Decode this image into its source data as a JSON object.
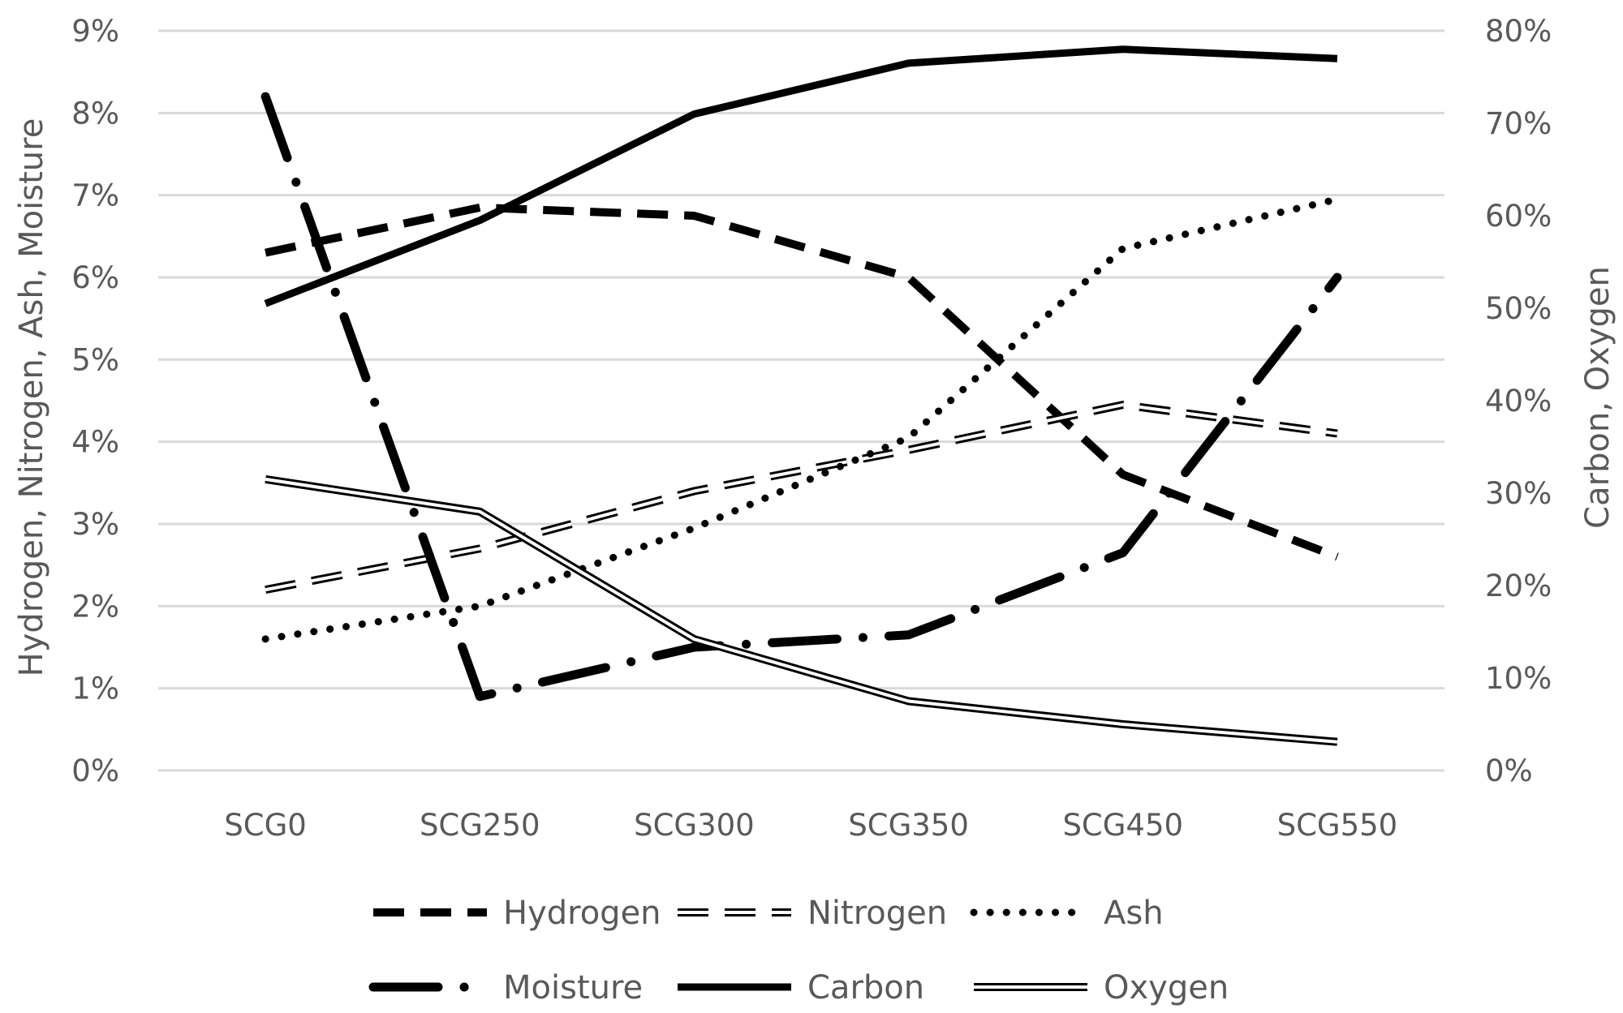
{
  "chart_data": {
    "type": "line",
    "categories": [
      "SCG0",
      "SCG250",
      "SCG300",
      "SCG350",
      "SCG450",
      "SCG550"
    ],
    "y_left": {
      "label": "Hydrogen, Nitrogen, Ash, Moisture",
      "range": [
        0,
        9
      ],
      "ticks": [
        "0%",
        "1%",
        "2%",
        "3%",
        "4%",
        "5%",
        "6%",
        "7%",
        "8%",
        "9%"
      ]
    },
    "y_right": {
      "label": "Carbon, Oxygen",
      "range": [
        0,
        80
      ],
      "ticks": [
        "0%",
        "10%",
        "20%",
        "30%",
        "40%",
        "50%",
        "60%",
        "70%",
        "80%"
      ]
    },
    "grid": true,
    "legend_position": "bottom",
    "series": [
      {
        "name": "Hydrogen",
        "axis": "left",
        "style": "dash",
        "values": [
          6.3,
          6.85,
          6.75,
          6.0,
          3.6,
          2.6
        ]
      },
      {
        "name": "Nitrogen",
        "axis": "left",
        "style": "hollow-dash",
        "values": [
          2.2,
          2.7,
          3.4,
          3.9,
          4.45,
          4.1
        ]
      },
      {
        "name": "Ash",
        "axis": "left",
        "style": "dot",
        "values": [
          1.6,
          2.0,
          2.95,
          4.05,
          6.35,
          6.95
        ]
      },
      {
        "name": "Moisture",
        "axis": "left",
        "style": "long-dash-dot",
        "values": [
          8.2,
          0.9,
          1.5,
          1.65,
          2.65,
          6.0
        ]
      },
      {
        "name": "Carbon",
        "axis": "right",
        "style": "solid",
        "values": [
          50.5,
          59.5,
          71.0,
          76.5,
          78.0,
          77.0
        ]
      },
      {
        "name": "Oxygen",
        "axis": "right",
        "style": "double",
        "values": [
          31.5,
          28.0,
          14.2,
          7.5,
          5.0,
          3.1
        ]
      }
    ]
  }
}
